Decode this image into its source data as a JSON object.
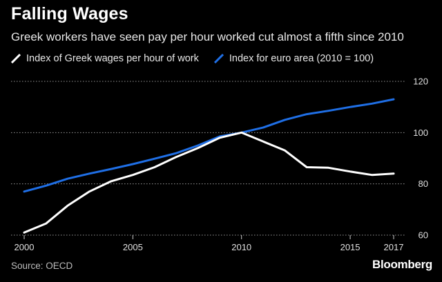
{
  "header": {
    "title": "Falling Wages",
    "subtitle": "Greek workers have seen pay per hour worked cut almost a fifth since 2010"
  },
  "footer": {
    "source": "Source: OECD",
    "brand": "Bloomberg"
  },
  "colors": {
    "background": "#000000",
    "greek": "#ffffff",
    "euro": "#1f6fe6",
    "grid": "#9a9a9a"
  },
  "chart_data": {
    "type": "line",
    "title": "Falling Wages",
    "subtitle": "Greek workers have seen pay per hour worked cut almost a fifth since 2010",
    "xlabel": "",
    "ylabel": "",
    "xlim": [
      2000,
      2017
    ],
    "ylim": [
      60,
      120
    ],
    "x_ticks": [
      2000,
      2005,
      2010,
      2015,
      2017
    ],
    "y_ticks": [
      60,
      80,
      100,
      120
    ],
    "grid": "horizontal dotted",
    "legend_position": "top",
    "series": [
      {
        "name": "Index of Greek wages per hour of work",
        "color": "#ffffff",
        "x": [
          2000,
          2001,
          2002,
          2003,
          2004,
          2005,
          2006,
          2007,
          2008,
          2009,
          2010,
          2011,
          2012,
          2013,
          2014,
          2015,
          2016,
          2017
        ],
        "values": [
          61,
          64.5,
          71.5,
          77,
          81,
          83.5,
          86.5,
          90.5,
          94,
          98,
          100,
          96.5,
          93,
          86.5,
          86.3,
          84.8,
          83.5,
          84
        ]
      },
      {
        "name": "Index for euro area (2010 = 100)",
        "color": "#1f6fe6",
        "x": [
          2000,
          2001,
          2002,
          2003,
          2004,
          2005,
          2006,
          2007,
          2008,
          2009,
          2010,
          2011,
          2012,
          2013,
          2014,
          2015,
          2016,
          2017
        ],
        "values": [
          77,
          79.3,
          82,
          84,
          85.8,
          87.7,
          89.8,
          92,
          95,
          98.5,
          100,
          102,
          105,
          107.2,
          108.5,
          110,
          111.3,
          113
        ]
      }
    ]
  }
}
